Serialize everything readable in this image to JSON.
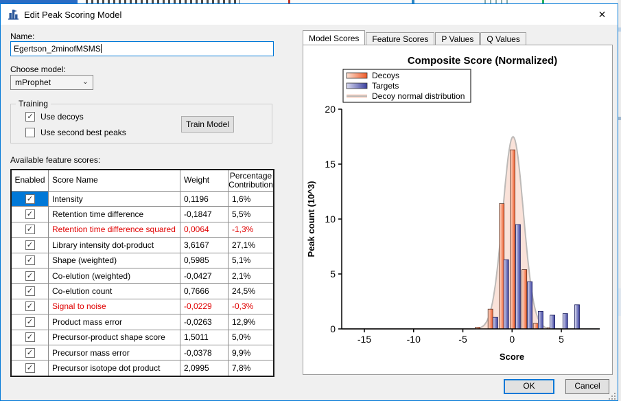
{
  "colors": {
    "accent": "#0078d7",
    "selected_cell": "#0078d7",
    "error_text": "#e00000",
    "decoy_bar": "#f05a28",
    "target_bar": "#3a3f9e",
    "curve_fill": "#f8d3c4",
    "curve_stroke": "#bdbab8"
  },
  "icons": {
    "close": "✕",
    "chevron_down": "⌄",
    "checkmark": "✓"
  },
  "window": {
    "title": "Edit Peak Scoring Model"
  },
  "form": {
    "name_label": "Name:",
    "name_value": "Egertson_2minofMSMS",
    "model_label": "Choose model:",
    "model_value": "mProphet",
    "training": {
      "legend": "Training",
      "use_decoys_label": "Use decoys",
      "use_decoys_checked": true,
      "use_second_label": "Use second best peaks",
      "use_second_checked": false,
      "train_button": "Train Model"
    },
    "features_label": "Available feature scores:"
  },
  "table": {
    "headers": [
      "Enabled",
      "Score Name",
      "Weight",
      "Percentage Contribution"
    ],
    "rows": [
      {
        "enabled": true,
        "name": "Intensity",
        "weight": "0,1196",
        "pct": "1,6%",
        "red": false,
        "selected": true
      },
      {
        "enabled": true,
        "name": "Retention time difference",
        "weight": "-0,1847",
        "pct": "5,5%",
        "red": false,
        "selected": false
      },
      {
        "enabled": true,
        "name": "Retention time difference squared",
        "weight": "0,0064",
        "pct": "-1,3%",
        "red": true,
        "selected": false
      },
      {
        "enabled": true,
        "name": "Library intensity dot-product",
        "weight": "3,6167",
        "pct": "27,1%",
        "red": false,
        "selected": false
      },
      {
        "enabled": true,
        "name": "Shape (weighted)",
        "weight": "0,5985",
        "pct": "5,1%",
        "red": false,
        "selected": false
      },
      {
        "enabled": true,
        "name": "Co-elution (weighted)",
        "weight": "-0,0427",
        "pct": "2,1%",
        "red": false,
        "selected": false
      },
      {
        "enabled": true,
        "name": "Co-elution count",
        "weight": "0,7666",
        "pct": "24,5%",
        "red": false,
        "selected": false
      },
      {
        "enabled": true,
        "name": "Signal to noise",
        "weight": "-0,0229",
        "pct": "-0,3%",
        "red": true,
        "selected": false
      },
      {
        "enabled": true,
        "name": "Product mass error",
        "weight": "-0,0263",
        "pct": "12,9%",
        "red": false,
        "selected": false
      },
      {
        "enabled": true,
        "name": "Precursor-product shape score",
        "weight": "1,5011",
        "pct": "5,0%",
        "red": false,
        "selected": false
      },
      {
        "enabled": true,
        "name": "Precursor mass error",
        "weight": "-0,0378",
        "pct": "9,9%",
        "red": false,
        "selected": false
      },
      {
        "enabled": true,
        "name": "Precursor isotope dot product",
        "weight": "2,0995",
        "pct": "7,8%",
        "red": false,
        "selected": false
      }
    ]
  },
  "tabs": [
    {
      "label": "Model Scores",
      "active": true
    },
    {
      "label": "Feature Scores",
      "active": false
    },
    {
      "label": "P Values",
      "active": false
    },
    {
      "label": "Q Values",
      "active": false
    }
  ],
  "buttons": {
    "ok": "OK",
    "cancel": "Cancel"
  },
  "chart_data": {
    "type": "bar",
    "title": "Composite Score (Normalized)",
    "xlabel": "Score",
    "ylabel": "Peak count (10^3)",
    "xlim": [
      -17.3,
      8.9
    ],
    "ylim": [
      0,
      20
    ],
    "xticks": [
      -15,
      -10,
      -5,
      0,
      5
    ],
    "yticks": [
      0,
      5,
      10,
      15,
      20
    ],
    "grid": false,
    "legend_position": "top-left",
    "legend": [
      {
        "label": "Decoys",
        "swatch": "gradient-orange"
      },
      {
        "label": "Targets",
        "swatch": "gradient-blue"
      },
      {
        "label": "Decoy normal distribution",
        "swatch": "pink-line"
      }
    ],
    "series": [
      {
        "name": "Decoys",
        "type": "bar",
        "points": [
          [
            -3.5,
            0.15
          ],
          [
            -2.2,
            1.8
          ],
          [
            -1.05,
            11.4
          ],
          [
            0.05,
            16.3
          ],
          [
            1.25,
            5.4
          ],
          [
            2.4,
            0.5
          ],
          [
            3.8,
            0.1
          ]
        ]
      },
      {
        "name": "Targets",
        "type": "bar",
        "points": [
          [
            -1.7,
            1.05
          ],
          [
            -0.6,
            6.3
          ],
          [
            0.6,
            9.5
          ],
          [
            1.8,
            4.3
          ],
          [
            2.9,
            1.6
          ],
          [
            4.1,
            1.25
          ],
          [
            5.4,
            1.4
          ],
          [
            6.6,
            2.2
          ]
        ]
      },
      {
        "name": "Decoy normal distribution",
        "type": "gaussian-area",
        "mean": 0.1,
        "sd": 1.05,
        "peak": 17.5
      }
    ]
  }
}
